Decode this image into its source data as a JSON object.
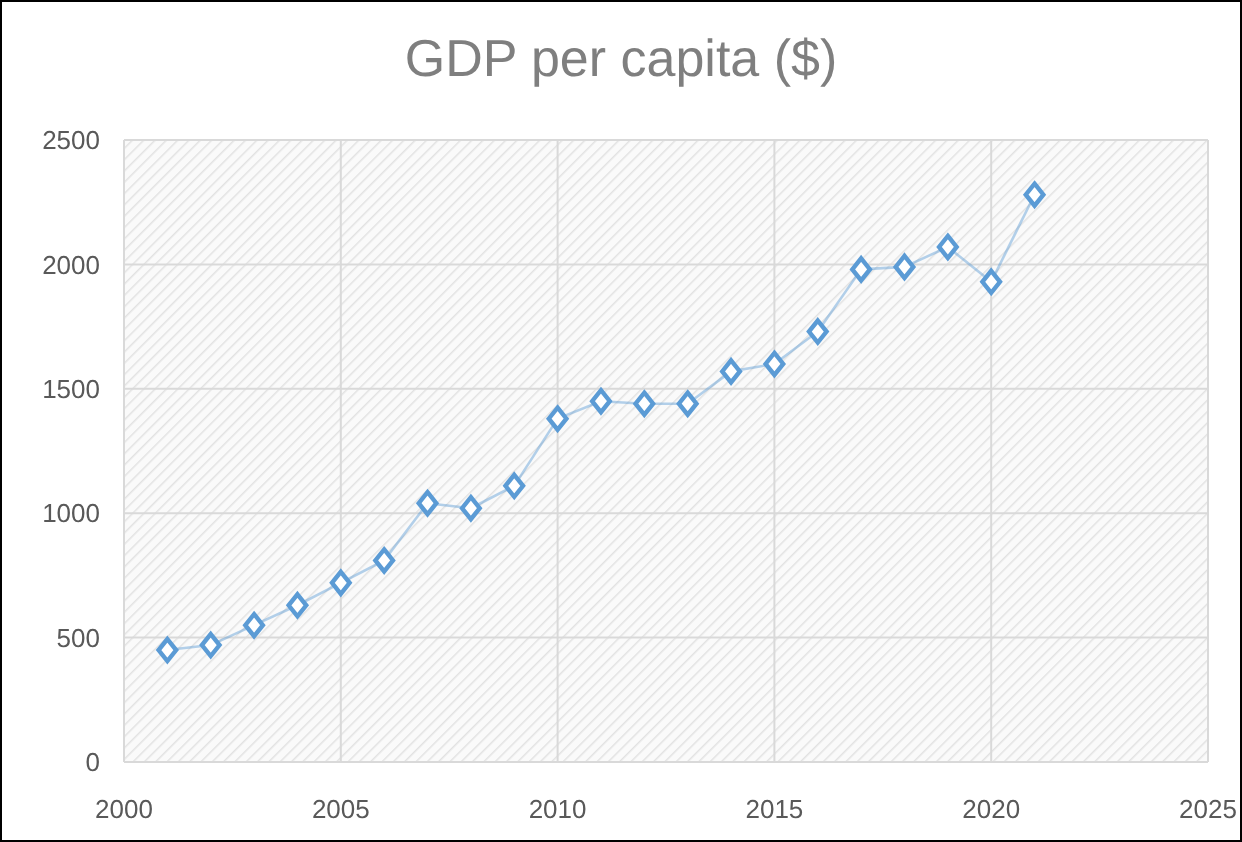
{
  "chart_data": {
    "type": "line",
    "title": "GDP per capita ($)",
    "x": [
      2001,
      2002,
      2003,
      2004,
      2005,
      2006,
      2007,
      2008,
      2009,
      2010,
      2011,
      2012,
      2013,
      2014,
      2015,
      2016,
      2017,
      2018,
      2019,
      2020,
      2021
    ],
    "series": [
      {
        "color": "#5b9bd5",
        "values": [
          450,
          470,
          550,
          630,
          720,
          810,
          1040,
          1020,
          1110,
          1380,
          1450,
          1440,
          1440,
          1570,
          1600,
          1730,
          1980,
          1990,
          2070,
          1930,
          2280
        ]
      }
    ],
    "xlim": [
      2000,
      2025
    ],
    "xticks": [
      2000,
      2005,
      2010,
      2015,
      2020,
      2025
    ],
    "ylim": [
      0,
      2500
    ],
    "yticks": [
      0,
      500,
      1000,
      1500,
      2000,
      2500
    ],
    "grid": true,
    "marker": "diamond",
    "line_style": "solid"
  }
}
